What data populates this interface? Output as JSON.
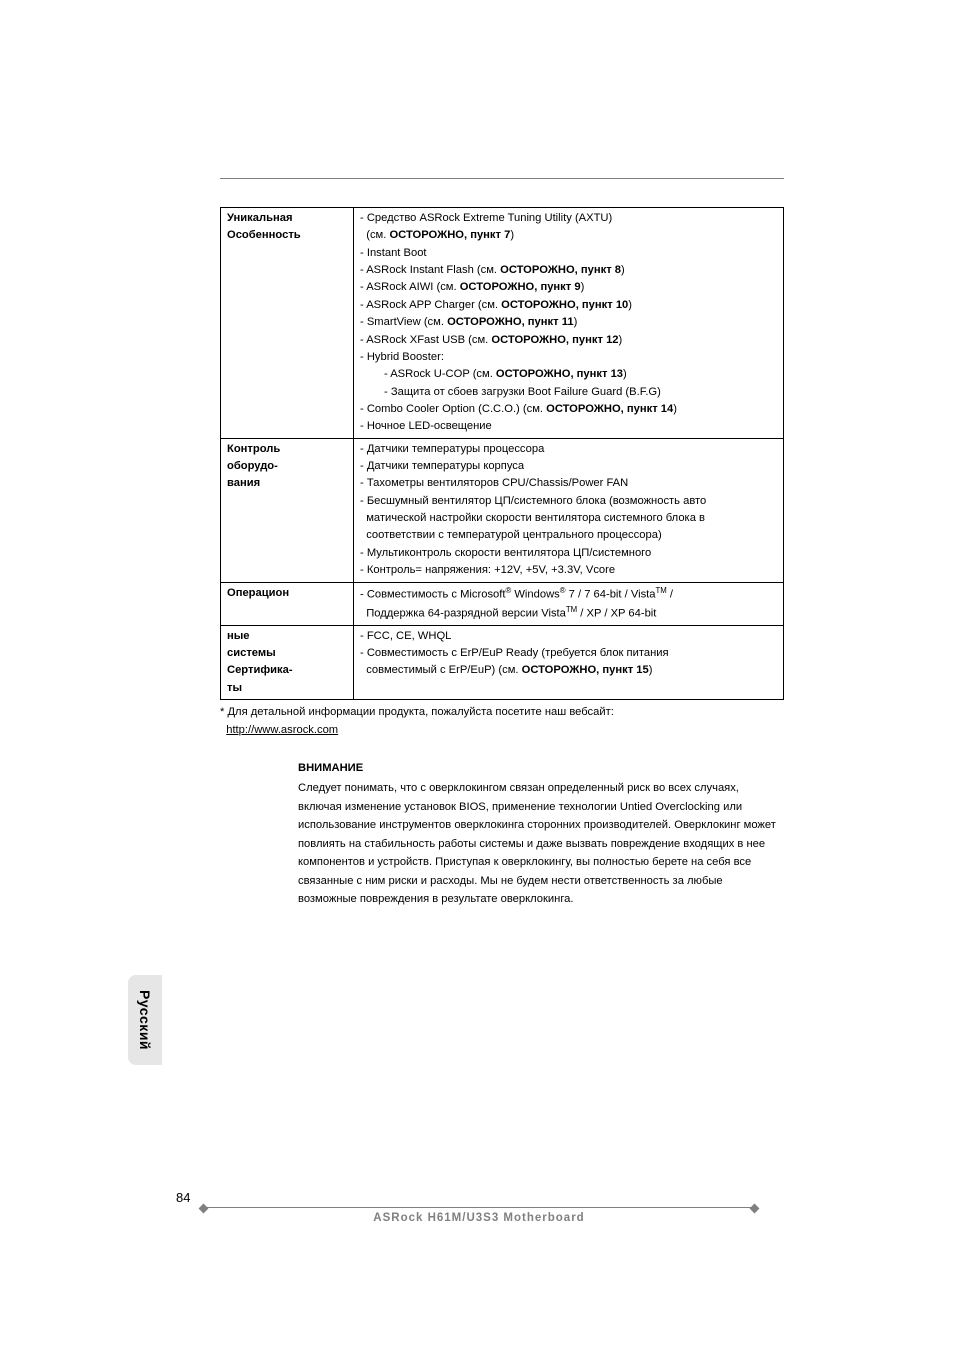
{
  "colors": {
    "text": "#000000",
    "rule": "#808080",
    "tab_bg": "#e6e6e6",
    "footer_text": "#808080",
    "background": "#ffffff",
    "border": "#000000"
  },
  "typography": {
    "body_fontsize_pt": 8.5,
    "side_tab_fontsize_pt": 10.5,
    "footer_fontsize_pt": 8.5,
    "page_num_fontsize_pt": 10
  },
  "table": {
    "rows": [
      {
        "label_lines": [
          "Уникальная",
          "Особенность"
        ],
        "content_lines": [
          {
            "t": "- Средство ASRock Extreme Tuning Utility (AXTU)"
          },
          {
            "t": "  (см. ",
            "b": "ОСТОРОЖНО, пункт 7",
            "after": ")"
          },
          {
            "t": "- Instant Boot"
          },
          {
            "t": "- ASRock Instant Flash (см. ",
            "b": "ОСТОРОЖНО, пункт 8",
            "after": ")"
          },
          {
            "t": "- ASRock AIWI (см. ",
            "b": "ОСТОРОЖНО, пункт 9",
            "after": ")"
          },
          {
            "t": "- ASRock APP Charger (см. ",
            "b": "ОСТОРОЖНО, пункт 10",
            "after": ")"
          },
          {
            "t": "- SmartView (см. ",
            "b": "ОСТОРОЖНО, пункт 11",
            "after": ")"
          },
          {
            "t": "- ASRock XFast USB (см. ",
            "b": "ОСТОРОЖНО, пункт 12",
            "after": ")"
          },
          {
            "t": "- Hybrid Booster:"
          },
          {
            "indent": true,
            "t": "- ASRock U-COP (см. ",
            "b": "ОСТОРОЖНО, пункт 13",
            "after": ")"
          },
          {
            "indent": true,
            "t": "- Защита от сбоев загрузки Boot Failure Guard (B.F.G)"
          },
          {
            "t": "- Combo Cooler Option (C.C.O.) (см. ",
            "b": "ОСТОРОЖНО, пункт 14",
            "after": ")"
          },
          {
            "t": "- Ночное LED-освещение"
          }
        ]
      },
      {
        "label_lines": [
          "Контроль",
          "оборудо-",
          "вания"
        ],
        "content_lines": [
          {
            "t": "- Датчики температуры процессора"
          },
          {
            "t": "- Датчики температуры корпуса"
          },
          {
            "t": "- Тахометры вентиляторов CPU/Chassis/Power FAN"
          },
          {
            "t": "- Бесшумный вентилятор ЦП/системного блока (возможность авто"
          },
          {
            "t": "  матической настройки скорости вентилятора системного блока в"
          },
          {
            "t": "  соответствии с температурой центрального процессора)"
          },
          {
            "t": "- Мультиконтроль скорости вентилятора ЦП/системного"
          },
          {
            "t": "- Контроль= напряжения: +12V, +5V, +3.3V, Vcore"
          }
        ]
      },
      {
        "label_lines": [
          "Операцион"
        ],
        "content_lines": [
          {
            "html": "- Совместимость с Microsoft<sup>®</sup> Windows<sup>®</sup> 7 / 7 64-bit / Vista<sup>TM</sup> /"
          },
          {
            "html": "  Поддержка 64-разрядной версии Vista<sup>TM</sup> / XP / XP 64-bit"
          }
        ]
      },
      {
        "label_lines": [
          "ные",
          "системы",
          "Сертифика-",
          "ты"
        ],
        "content_lines": [
          {
            "t": "- FCC, CE, WHQL"
          },
          {
            "t": "- Совместимость с ErP/EuP Ready (требуется блок питания"
          },
          {
            "t": "  совместимый с ErP/EuP) (см. ",
            "b": "ОСТОРОЖНО, пункт 15",
            "after": ")"
          }
        ]
      }
    ]
  },
  "footnote": {
    "line1": "* Для детальной информации продукта, пожалуйста посетите наш вебсайт:",
    "link_text": "http://www.asrock.com",
    "link_indent": "  "
  },
  "warning": {
    "title": "ВНИМАНИЕ",
    "body": "Следует понимать, что с оверклокингом связан определенный риск во всех случаях, включая изменение установок BIOS, применение технологии Untied Overclocking или использование инструментов оверклокинга сторонних производителей. Оверклокинг может повлиять на стабильность работы системы и даже вызвать повреждение входящих в нее компонентов и устройств. Приступая к оверклокингу, вы полностью берете на себя все связанные с ним риски и расходы. Мы не будем нести ответственность за любые возможные повреждения в результате оверклокинга."
  },
  "side_tab": "Русский",
  "footer": {
    "page_number": "84",
    "text": "ASRock  H61M/U3S3  Motherboard"
  }
}
